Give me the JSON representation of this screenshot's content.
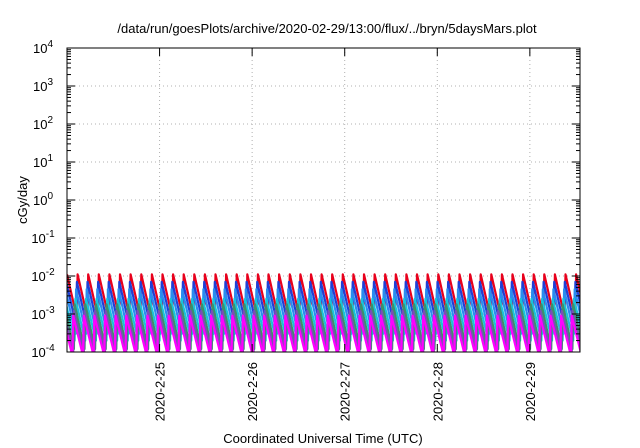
{
  "chart_data": {
    "type": "line",
    "title": "/data/run/goesPlots/archive/2020-02-29/13:00/flux/../bryn/5daysMars.plot",
    "xlabel": "Coordinated Universal Time (UTC)",
    "ylabel": "cGy/day",
    "yscale": "log",
    "ylim": [
      0.0001,
      10000
    ],
    "xlim": [
      "2020-02-24 00:00",
      "2020-02-29 13:00"
    ],
    "grid": true,
    "x_tick_labels": [
      "2020-2-25",
      "2020-2-26",
      "2020-2-27",
      "2020-2-28",
      "2020-2-29"
    ],
    "y_tick_labels": [
      {
        "base": "10",
        "exp": "-4"
      },
      {
        "base": "10",
        "exp": "-3"
      },
      {
        "base": "10",
        "exp": "-2"
      },
      {
        "base": "10",
        "exp": "-1"
      },
      {
        "base": "10",
        "exp": "0"
      },
      {
        "base": "10",
        "exp": "1"
      },
      {
        "base": "10",
        "exp": "2"
      },
      {
        "base": "10",
        "exp": "3"
      },
      {
        "base": "10",
        "exp": "4"
      }
    ],
    "series": [
      {
        "color": "#e8001c",
        "values": {
          "sawtooth_period_hours": 2.75,
          "peak": 0.011,
          "trough": 0.0008
        }
      },
      {
        "color": "#1f3fd6",
        "values": {
          "sawtooth_period_hours": 2.75,
          "peak": 0.007,
          "trough": 0.0005
        }
      },
      {
        "color": "#2a8cf0",
        "values": {
          "sawtooth_period_hours": 2.75,
          "peak": 0.0045,
          "trough": 0.0003
        }
      },
      {
        "color": "#18c4d8",
        "values": {
          "sawtooth_period_hours": 2.75,
          "peak": 0.0025,
          "trough": 0.0002
        }
      },
      {
        "color": "#3d8f6a",
        "values": {
          "sawtooth_period_hours": 2.75,
          "peak": 0.0018,
          "trough": 0.00012
        }
      },
      {
        "color": "#7a4fb5",
        "values": {
          "sawtooth_period_hours": 2.75,
          "peak": 0.0012,
          "trough": 0.0001
        }
      },
      {
        "color": "#ff00ff",
        "values": {
          "sawtooth_period_hours": 2.75,
          "peak": 0.0009,
          "trough": 8e-05
        }
      }
    ]
  }
}
